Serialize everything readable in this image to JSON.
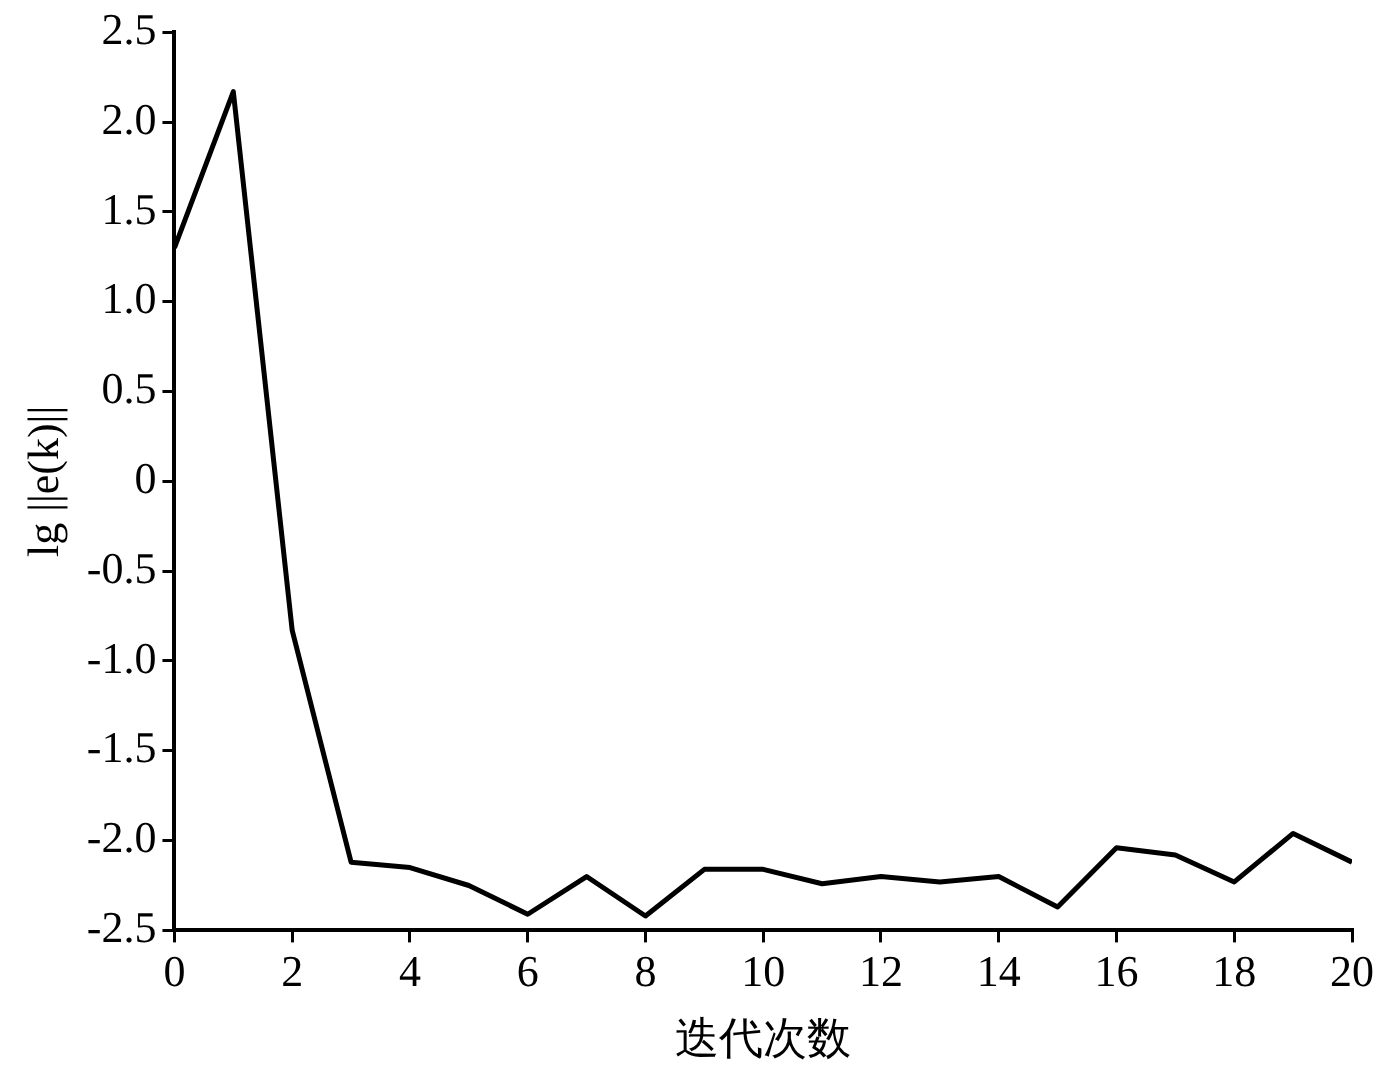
{
  "chart_data": {
    "type": "line",
    "xlabel": "迭代次数",
    "ylabel": "lg ||e(k)||",
    "x": [
      0,
      1,
      2,
      3,
      4,
      5,
      6,
      7,
      8,
      9,
      10,
      11,
      12,
      13,
      14,
      15,
      16,
      17,
      18,
      19,
      20
    ],
    "series": [
      {
        "color": "#000000",
        "values": [
          1.3,
          2.17,
          -0.83,
          -2.12,
          -2.15,
          -2.25,
          -2.41,
          -2.2,
          -2.42,
          -2.16,
          -2.16,
          -2.24,
          -2.2,
          -2.23,
          -2.2,
          -2.37,
          -2.04,
          -2.08,
          -2.23,
          -1.96,
          -2.12
        ]
      }
    ],
    "xlim": [
      0,
      20
    ],
    "xticks": [
      0,
      2,
      4,
      6,
      8,
      10,
      12,
      14,
      16,
      18,
      20
    ],
    "ylim": [
      -2.5,
      2.5
    ],
    "yticks": [
      {
        "value": -2.5,
        "label": "-2.5"
      },
      {
        "value": -2,
        "label": "-2.0"
      },
      {
        "value": -1.5,
        "label": "-1.5"
      },
      {
        "value": -1,
        "label": "-1.0"
      },
      {
        "value": -0.5,
        "label": "-0.5"
      },
      0,
      0.5,
      {
        "value": 1,
        "label": "1.0"
      },
      1.5,
      {
        "value": 2,
        "label": "2.0"
      },
      2.5
    ],
    "grid": false,
    "legend": false,
    "marker": "none",
    "line_style": "solid"
  }
}
